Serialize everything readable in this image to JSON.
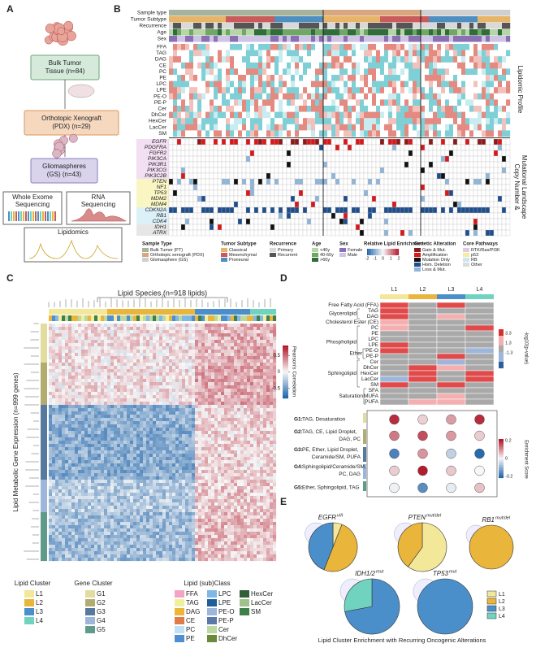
{
  "a": {
    "label": "A",
    "boxes": [
      [
        "Bulk Tumor",
        "Tissue (n=84)"
      ],
      [
        "Orthotopic Xenograft",
        "(PDX) (n=29)"
      ],
      [
        "Gliomaspheres",
        "(GS) (n=43)"
      ]
    ],
    "wes": [
      "Whole Exome",
      "Sequencing"
    ],
    "rna": [
      "RNA",
      "Sequencing"
    ],
    "lipidomics": "Lipidomics"
  },
  "b": {
    "label": "B",
    "tracks": [
      "Sample type",
      "Tumor Subtype",
      "Recurrence",
      "Age",
      "Sex"
    ],
    "lipids": [
      "FFA",
      "TAG",
      "DAG",
      "CE",
      "PC",
      "PE",
      "LPC",
      "LPE",
      "PE-O",
      "PE-P",
      "Cer",
      "DhCer",
      "HexCer",
      "LacCer",
      "SM"
    ],
    "genes": [
      "EGFR",
      "PDGFRA",
      "FGFR2",
      "PIK3CA",
      "PIK3R1",
      "PIK3CG",
      "PIK3C2B",
      "PTEN",
      "NF1",
      "TP53",
      "MDM2",
      "MDM4",
      "CDKN2A",
      "RB1",
      "CDK4",
      "IDH1",
      "ATRX"
    ],
    "side": [
      "Lipidomic Profile",
      "Copy Number &",
      "Mutational Landscape"
    ],
    "legend": [
      {
        "title": "Sample Type",
        "items": [
          {
            "name": "Bulk Tumor (PT)",
            "color": "#a9b29a"
          },
          {
            "name": "Orthotopic xenograft (PDX)",
            "color": "#d9a77e"
          },
          {
            "name": "Glomasphere (GS)",
            "color": "#cfcfcf"
          }
        ]
      },
      {
        "title": "Tumor Subtype",
        "items": [
          {
            "name": "Classical",
            "color": "#e7b56a"
          },
          {
            "name": "Mesenchymal",
            "color": "#c95b5b"
          },
          {
            "name": "Proneural",
            "color": "#4e8fc0"
          }
        ]
      },
      {
        "title": "Recurrence",
        "items": [
          {
            "name": "Primary",
            "color": "#d9d9d9"
          },
          {
            "name": "Recurrent",
            "color": "#555555"
          }
        ]
      },
      {
        "title": "Age",
        "items": [
          {
            "name": "<40y",
            "color": "#b7d6a6"
          },
          {
            "name": "40-60y",
            "color": "#6fa865"
          },
          {
            "name": ">60y",
            "color": "#2f6e3a"
          }
        ]
      },
      {
        "title": "Sex",
        "items": [
          {
            "name": "Female",
            "color": "#8a6fb5"
          },
          {
            "name": "Male",
            "color": "#cfc3e6"
          }
        ]
      },
      {
        "title": "Relative Lipid Enrichment",
        "ticks": [
          -2,
          -1,
          0,
          1,
          2
        ]
      },
      {
        "title": "Genetic Alteration",
        "items": [
          {
            "name": "Gain & Mut.",
            "color": "#8b1a1a"
          },
          {
            "name": "Amplification",
            "color": "#d7191c"
          },
          {
            "name": "Mutation Only",
            "color": "#111111"
          },
          {
            "name": "Hom. Deletion",
            "color": "#1f4e8c"
          },
          {
            "name": "Loss & Mut.",
            "color": "#8fb5d9"
          }
        ]
      },
      {
        "title": "Core Pathways",
        "items": [
          {
            "name": "RTK/Ras/PI3K",
            "color": "#e7c6e8"
          },
          {
            "name": "p53",
            "color": "#f3ee9a"
          },
          {
            "name": "RB",
            "color": "#c9e6f3"
          },
          {
            "name": "Other",
            "color": "#dcdcdc"
          }
        ]
      }
    ]
  },
  "c": {
    "label": "C",
    "title": "Lipid Species (n=918 lipids)",
    "ylabel": "Lipid  Metabolic Gene Expression (n=999 genes)",
    "colorbar": {
      "title": "Pearson's Correlation",
      "lim": [
        -0.8,
        0.8
      ],
      "ticks": [
        0.5,
        0,
        -0.5
      ]
    },
    "legend": [
      {
        "title": "Lipid Cluster",
        "items": [
          {
            "name": "L1",
            "color": "#f3e79a"
          },
          {
            "name": "L2",
            "color": "#e9b53a"
          },
          {
            "name": "L3",
            "color": "#4a8fc9"
          },
          {
            "name": "L4",
            "color": "#6fd3c0"
          }
        ]
      },
      {
        "title": "Gene Cluster",
        "items": [
          {
            "name": "G1",
            "color": "#e3dca0"
          },
          {
            "name": "G2",
            "color": "#b3ac70"
          },
          {
            "name": "G3",
            "color": "#56799f"
          },
          {
            "name": "G4",
            "color": "#9db6d9"
          },
          {
            "name": "G5",
            "color": "#5f9a8a"
          }
        ]
      },
      {
        "title": "Lipid (sub)Class",
        "items": [
          {
            "name": "FFA",
            "color": "#f4a3c4"
          },
          {
            "name": "TAG",
            "color": "#f3ee9a"
          },
          {
            "name": "DAG",
            "color": "#e9b53a"
          },
          {
            "name": "CE",
            "color": "#e07b4c"
          },
          {
            "name": "PC",
            "color": "#bfe0f5"
          },
          {
            "name": "PE",
            "color": "#4f8fd0"
          },
          {
            "name": "LPC",
            "color": "#7fb7e6"
          },
          {
            "name": "LPE",
            "color": "#1f5e9c"
          },
          {
            "name": "PE-O",
            "color": "#9db6d9"
          },
          {
            "name": "PE-P",
            "color": "#5a78a8"
          },
          {
            "name": "Cer",
            "color": "#bcd9a0"
          },
          {
            "name": "DhCer",
            "color": "#6a8a3a"
          },
          {
            "name": "HexCer",
            "color": "#315f3c"
          },
          {
            "name": "LacCer",
            "color": "#9fc28b"
          },
          {
            "name": "SM",
            "color": "#3f7f4a"
          }
        ]
      }
    ]
  },
  "d": {
    "label": "D",
    "columns": [
      "L1",
      "L2",
      "L3",
      "L4"
    ],
    "rows": [
      "Free Fatty Acid (FFA)",
      "TAG",
      "DAG",
      "Cholesterol Ester (CE)",
      "PC",
      "PE",
      "LPC",
      "LPE",
      "PE-O",
      "PE-P",
      "Cer",
      "DhCer",
      "HexCer",
      "LacCer",
      "SM",
      "SFA",
      "MUFA",
      "PUFA"
    ],
    "groups": [
      "Glycerolipid",
      "Phospholipid",
      "Ether",
      "Sphingolipid",
      "Saturation"
    ],
    "colorbar": {
      "title": "-log10(p-value)",
      "ticks": [
        3.3,
        1.3,
        -1.3
      ]
    },
    "modules": [
      {
        "id": "G1:",
        "lines": [
          "TAG, Desaturation"
        ]
      },
      {
        "id": "G2:",
        "lines": [
          "TAG, CE, Lipid Droplet,",
          "DAG, PC"
        ]
      },
      {
        "id": "G3:",
        "lines": [
          "PE, Ether, Lipid Droplet,",
          "Ceramide/SM, PUFA"
        ]
      },
      {
        "id": "G4:",
        "lines": [
          "Sphingolipid/Ceramide/SM,",
          "PC, DAG"
        ]
      },
      {
        "id": "G5:",
        "lines": [
          "Ether, Sphingolipid, TAG"
        ]
      }
    ],
    "dot_colorbar": {
      "title": "Enrichment Score",
      "ticks": [
        0.2,
        0,
        -0.2
      ]
    }
  },
  "e": {
    "label": "E",
    "caption": "Lipid Cluster Enrichment with Recurring Oncogenic Alterations",
    "legend": [
      "L1",
      "L2",
      "L3",
      "L4"
    ],
    "colors": [
      "#f3e79a",
      "#e9b53a",
      "#4a8fc9",
      "#6fd3c0"
    ],
    "pies": [
      {
        "gene": "EGFR",
        "sup": "vIII",
        "values": [
          6,
          50,
          44,
          0
        ]
      },
      {
        "gene": "PTEN",
        "sup": "mut/del",
        "values": [
          60,
          40,
          0,
          0
        ]
      },
      {
        "gene": "RB1",
        "sup": "mut/del",
        "values": [
          0,
          100,
          0,
          0
        ]
      },
      {
        "gene": "IDH1/2",
        "sup": "mut",
        "values": [
          0,
          0,
          72,
          28
        ]
      },
      {
        "gene": "TP53",
        "sup": "mut",
        "values": [
          0,
          0,
          100,
          0
        ]
      }
    ]
  }
}
